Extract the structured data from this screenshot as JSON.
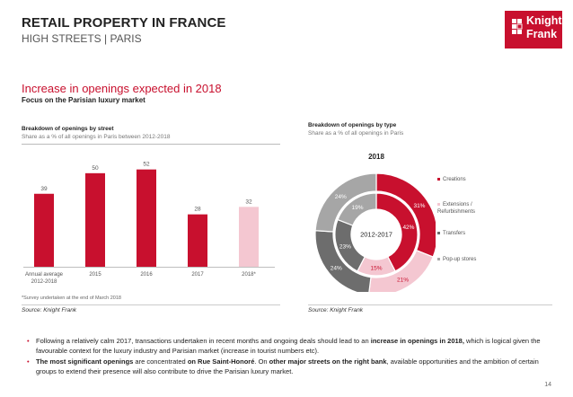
{
  "header": {
    "title": "RETAIL PROPERTY IN FRANCE",
    "subtitle": "HIGH STREETS | PARIS",
    "logo_line1": "Knight",
    "logo_line2": "Frank"
  },
  "section": {
    "title": "Increase in openings expected in 2018",
    "subtitle": "Focus on the Parisian luxury market"
  },
  "chart_data": [
    {
      "type": "bar",
      "title": "Breakdown of openings by street",
      "subtitle": "Share as a % of all openings in Paris between 2012-2018",
      "categories": [
        "Annual average\n2012-2018",
        "2015",
        "2016",
        "2017",
        "2018*"
      ],
      "values": [
        39,
        50,
        52,
        28,
        32
      ],
      "colors": [
        "#c8102e",
        "#c8102e",
        "#c8102e",
        "#c8102e",
        "#f4c7d1"
      ],
      "ylim": [
        0,
        60
      ],
      "grid": false,
      "footnote": "*Survey undertaken at the end of March 2018",
      "source": "Source: Knight Frank"
    },
    {
      "type": "pie",
      "title": "Breakdown of openings by type",
      "subtitle": "Share as a % of all openings in Paris",
      "outer_label": "2018",
      "inner_label": "2012-2017",
      "categories": [
        "Creations",
        "Extensions / Refurbishments",
        "Transfers",
        "Pop-up stores"
      ],
      "colors": [
        "#c8102e",
        "#f4c7d1",
        "#6d6d6d",
        "#a6a6a6"
      ],
      "series": [
        {
          "name": "2018",
          "values": [
            31,
            21,
            24,
            24
          ]
        },
        {
          "name": "2012-2017",
          "values": [
            42,
            15,
            23,
            19
          ]
        }
      ],
      "source": "Source: Knight Frank"
    }
  ],
  "bullets": [
    {
      "parts": [
        {
          "text": "Following a relatively calm 2017, transactions undertaken in recent months and ongoing deals should lead to an ",
          "bold": false
        },
        {
          "text": "increase in openings in 2018,",
          "bold": true
        },
        {
          "text": " which is logical given the favourable context for the luxury industry and Parisian market (increase in tourist numbers etc).",
          "bold": false
        }
      ]
    },
    {
      "parts": [
        {
          "text": "The most significant openings",
          "bold": true
        },
        {
          "text": " are concentrated ",
          "bold": false
        },
        {
          "text": "on Rue Saint-Honoré",
          "bold": true
        },
        {
          "text": ". On ",
          "bold": false
        },
        {
          "text": "other major streets on the right bank",
          "bold": true
        },
        {
          "text": ", available opportunities and the ambition of certain groups to extend their presence will also contribute to drive the Parisian luxury market.",
          "bold": false
        }
      ]
    }
  ],
  "page_number": "14"
}
